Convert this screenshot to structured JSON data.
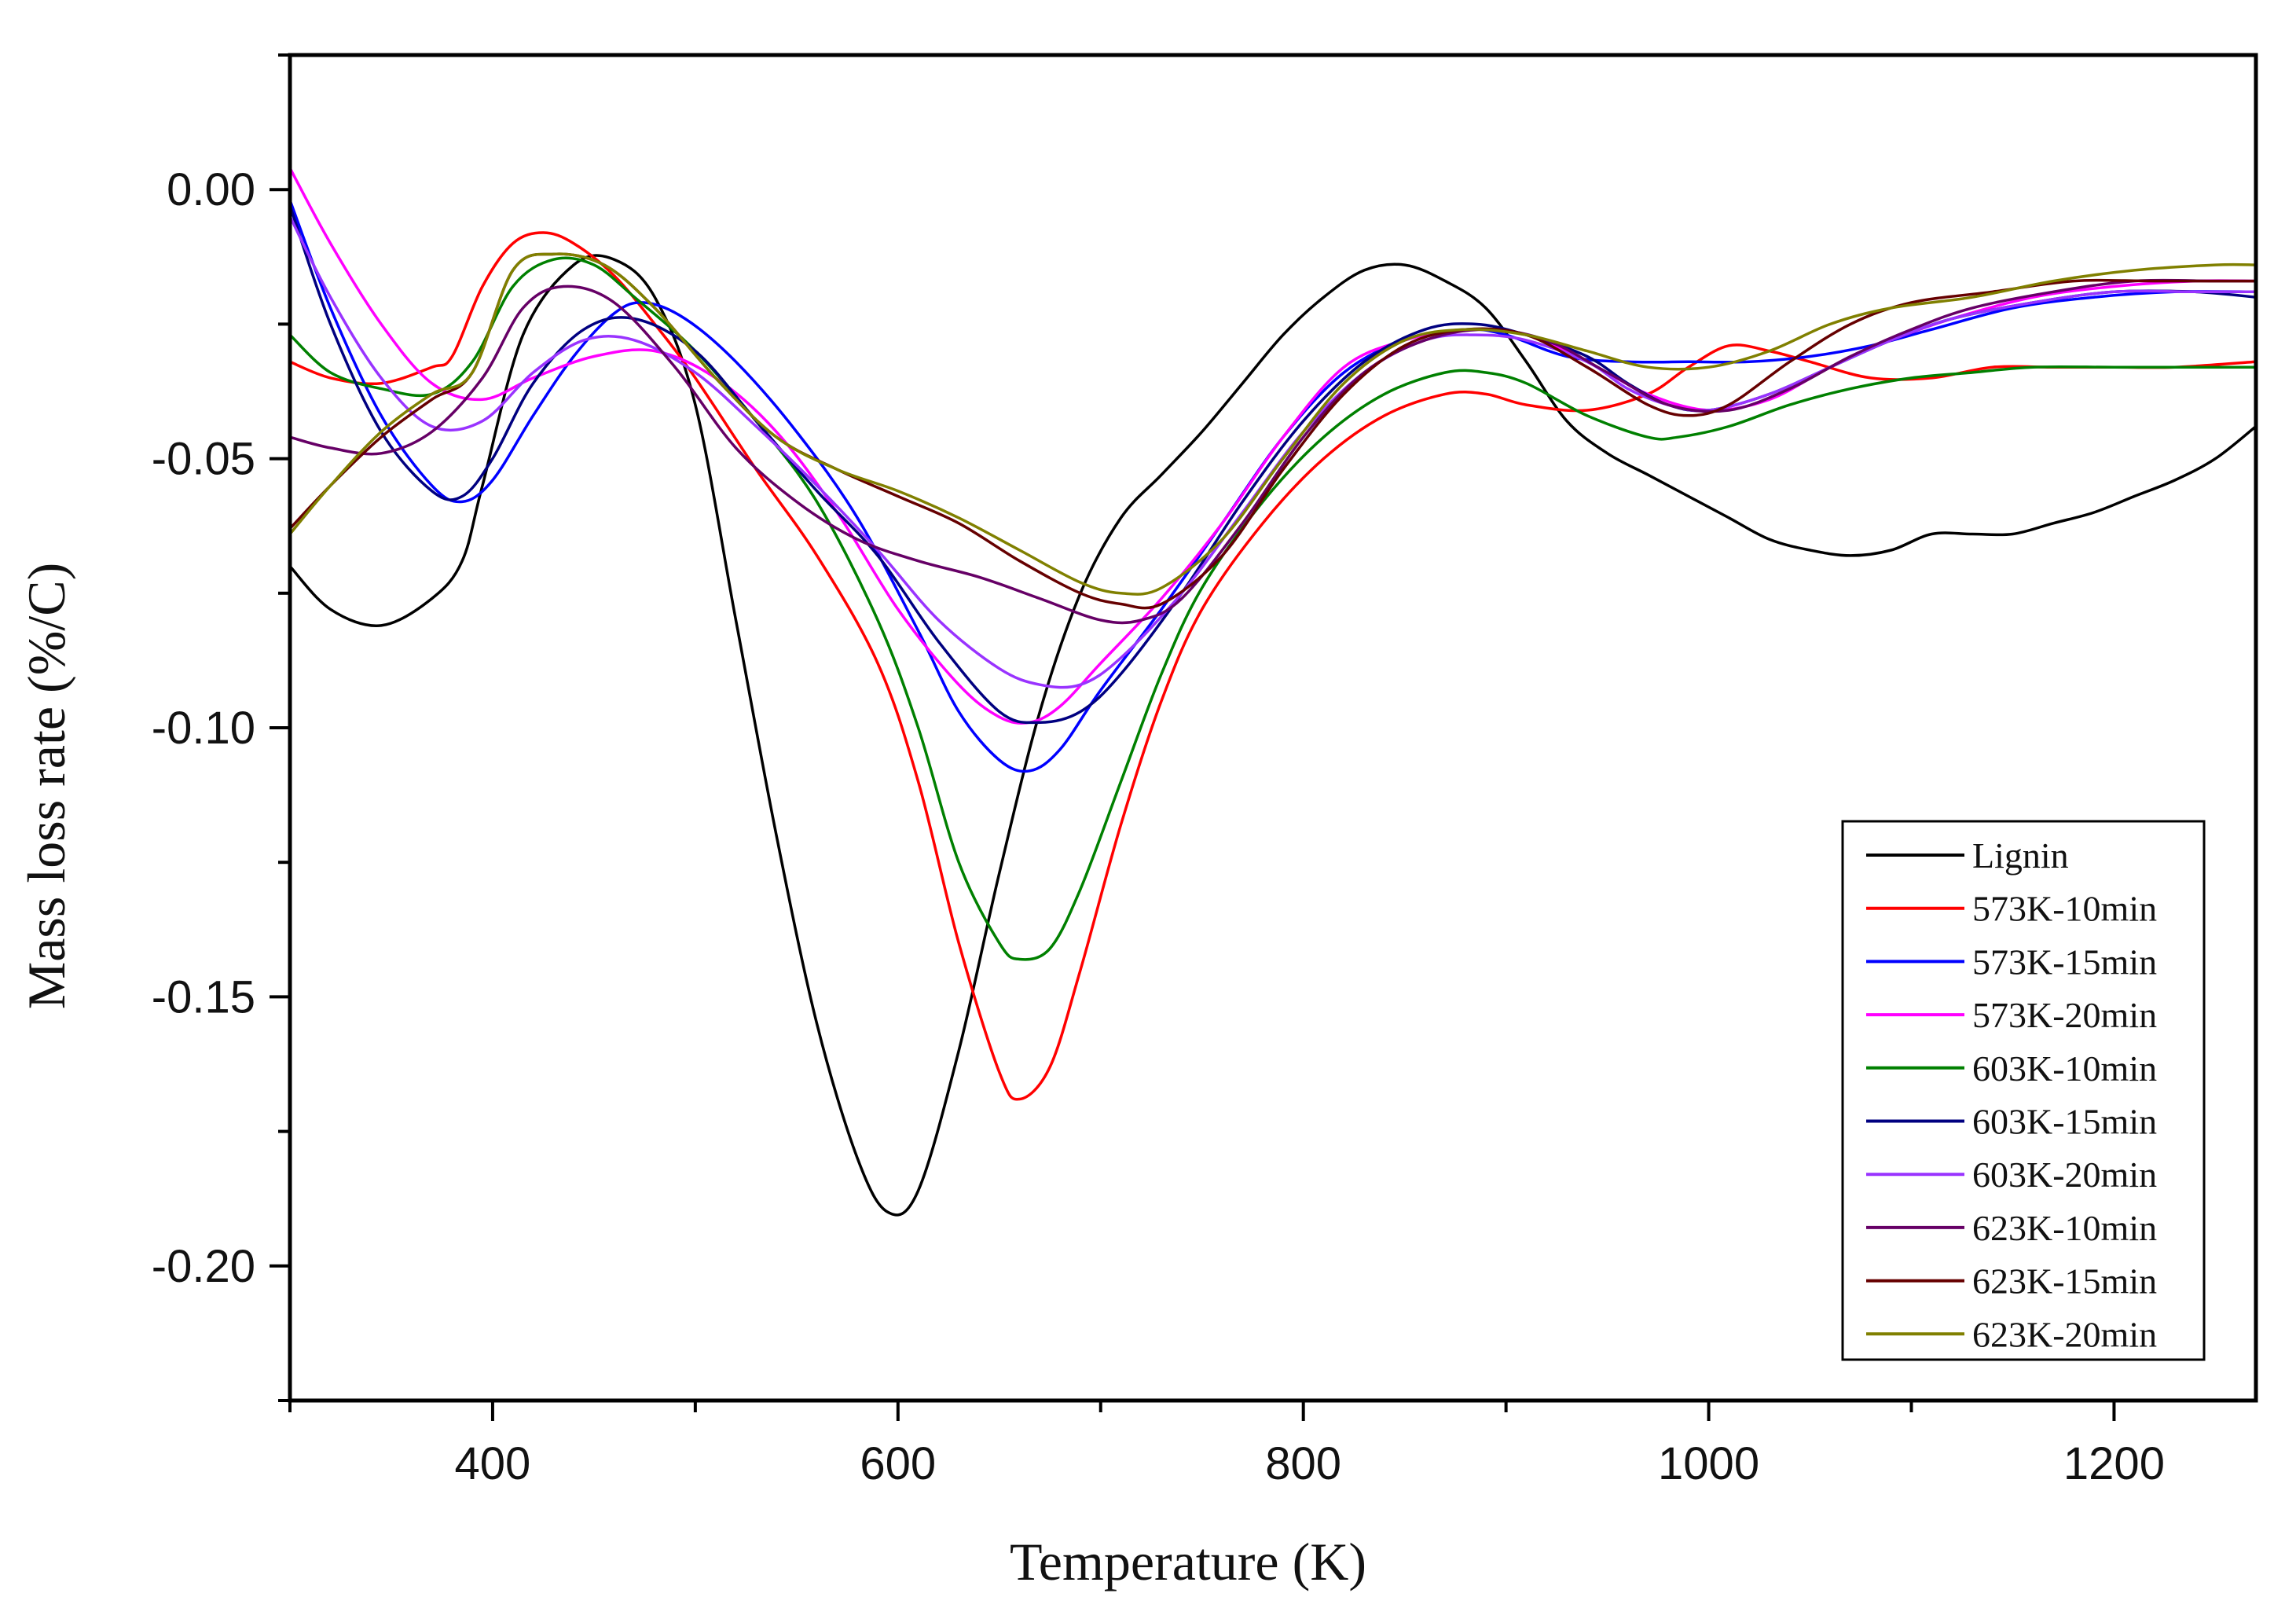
{
  "chart_data": {
    "type": "line",
    "title": "",
    "xlabel": "Temperature (K)",
    "ylabel": "Mass loss rate (%/C)",
    "xlim": [
      300,
      1270
    ],
    "ylim": [
      -0.225,
      0.025
    ],
    "xticks": [
      400,
      600,
      800,
      1000,
      1200
    ],
    "xtick_labels": [
      "400",
      "600",
      "800",
      "1000",
      "1200"
    ],
    "xminor": [
      300,
      500,
      700,
      900,
      1100
    ],
    "yticks": [
      0.0,
      -0.05,
      -0.1,
      -0.15,
      -0.2
    ],
    "ytick_labels": [
      "0.00",
      "-0.05",
      "-0.10",
      "-0.15",
      "-0.20"
    ],
    "yminor": [
      0.025,
      -0.025,
      -0.075,
      -0.125,
      -0.175,
      -0.225
    ],
    "grid": false,
    "legend_position": "bottom-right",
    "series": [
      {
        "name": "Lignin",
        "color": "#000000",
        "x": [
          300,
          320,
          345,
          370,
          385,
          395,
          415,
          440,
          460,
          480,
          500,
          520,
          540,
          560,
          580,
          595,
          610,
          630,
          650,
          670,
          690,
          710,
          730,
          750,
          770,
          790,
          810,
          830,
          850,
          870,
          890,
          910,
          930,
          950,
          970,
          990,
          1010,
          1030,
          1050,
          1070,
          1090,
          1110,
          1130,
          1150,
          1170,
          1190,
          1210,
          1230,
          1250,
          1270
        ],
        "y": [
          -0.07,
          -0.078,
          -0.081,
          -0.076,
          -0.069,
          -0.055,
          -0.027,
          -0.014,
          -0.013,
          -0.02,
          -0.04,
          -0.08,
          -0.12,
          -0.155,
          -0.18,
          -0.19,
          -0.186,
          -0.16,
          -0.127,
          -0.097,
          -0.075,
          -0.061,
          -0.053,
          -0.045,
          -0.036,
          -0.027,
          -0.02,
          -0.015,
          -0.014,
          -0.017,
          -0.022,
          -0.032,
          -0.043,
          -0.049,
          -0.053,
          -0.057,
          -0.061,
          -0.065,
          -0.067,
          -0.068,
          -0.067,
          -0.064,
          -0.064,
          -0.064,
          -0.062,
          -0.06,
          -0.057,
          -0.054,
          -0.05,
          -0.044
        ]
      },
      {
        "name": "573K-10min",
        "color": "#ff0000",
        "x": [
          300,
          320,
          345,
          370,
          380,
          395,
          410,
          425,
          440,
          460,
          480,
          500,
          530,
          560,
          590,
          610,
          630,
          650,
          660,
          675,
          690,
          710,
          730,
          750,
          780,
          810,
          840,
          870,
          890,
          910,
          940,
          970,
          990,
          1010,
          1030,
          1050,
          1080,
          1110,
          1140,
          1170,
          1200,
          1230,
          1270
        ],
        "y": [
          -0.032,
          -0.035,
          -0.036,
          -0.033,
          -0.031,
          -0.018,
          -0.01,
          -0.008,
          -0.01,
          -0.016,
          -0.025,
          -0.035,
          -0.052,
          -0.068,
          -0.088,
          -0.11,
          -0.14,
          -0.164,
          -0.169,
          -0.163,
          -0.145,
          -0.118,
          -0.095,
          -0.078,
          -0.062,
          -0.05,
          -0.042,
          -0.038,
          -0.038,
          -0.04,
          -0.041,
          -0.038,
          -0.033,
          -0.029,
          -0.03,
          -0.032,
          -0.035,
          -0.035,
          -0.033,
          -0.033,
          -0.033,
          -0.033,
          -0.032
        ]
      },
      {
        "name": "573K-15min",
        "color": "#0000ff",
        "x": [
          300,
          320,
          345,
          370,
          385,
          400,
          420,
          440,
          460,
          475,
          495,
          520,
          550,
          580,
          610,
          630,
          650,
          665,
          680,
          700,
          730,
          760,
          790,
          820,
          850,
          880,
          900,
          930,
          960,
          990,
          1020,
          1050,
          1080,
          1110,
          1150,
          1190,
          1230,
          1270
        ],
        "y": [
          -0.002,
          -0.022,
          -0.042,
          -0.055,
          -0.058,
          -0.054,
          -0.042,
          -0.031,
          -0.023,
          -0.021,
          -0.024,
          -0.032,
          -0.045,
          -0.061,
          -0.082,
          -0.097,
          -0.106,
          -0.108,
          -0.104,
          -0.093,
          -0.078,
          -0.062,
          -0.046,
          -0.034,
          -0.028,
          -0.026,
          -0.027,
          -0.031,
          -0.032,
          -0.032,
          -0.032,
          -0.031,
          -0.029,
          -0.026,
          -0.022,
          -0.02,
          -0.019,
          -0.019
        ]
      },
      {
        "name": "573K-20min",
        "color": "#ff00ff",
        "x": [
          300,
          320,
          345,
          370,
          395,
          420,
          450,
          480,
          510,
          540,
          570,
          600,
          630,
          650,
          665,
          680,
          700,
          730,
          760,
          790,
          820,
          850,
          880,
          910,
          940,
          970,
          1000,
          1030,
          1060,
          1090,
          1120,
          1160,
          1200,
          1240,
          1270
        ],
        "y": [
          0.004,
          -0.01,
          -0.025,
          -0.036,
          -0.039,
          -0.035,
          -0.031,
          -0.03,
          -0.035,
          -0.045,
          -0.06,
          -0.078,
          -0.092,
          -0.098,
          -0.099,
          -0.096,
          -0.088,
          -0.076,
          -0.062,
          -0.046,
          -0.033,
          -0.028,
          -0.026,
          -0.027,
          -0.032,
          -0.038,
          -0.041,
          -0.039,
          -0.033,
          -0.028,
          -0.024,
          -0.02,
          -0.018,
          -0.017,
          -0.017
        ]
      },
      {
        "name": "603K-10min",
        "color": "#008000",
        "x": [
          300,
          320,
          345,
          370,
          390,
          410,
          430,
          450,
          470,
          500,
          530,
          560,
          590,
          610,
          630,
          650,
          660,
          675,
          690,
          710,
          730,
          750,
          780,
          810,
          840,
          870,
          890,
          910,
          940,
          970,
          985,
          1010,
          1040,
          1070,
          1100,
          1130,
          1160,
          1200,
          1240,
          1270
        ],
        "y": [
          -0.027,
          -0.034,
          -0.037,
          -0.038,
          -0.032,
          -0.018,
          -0.013,
          -0.014,
          -0.02,
          -0.03,
          -0.043,
          -0.058,
          -0.08,
          -0.1,
          -0.125,
          -0.14,
          -0.143,
          -0.141,
          -0.13,
          -0.11,
          -0.09,
          -0.074,
          -0.058,
          -0.046,
          -0.038,
          -0.034,
          -0.034,
          -0.036,
          -0.042,
          -0.046,
          -0.046,
          -0.044,
          -0.04,
          -0.037,
          -0.035,
          -0.034,
          -0.033,
          -0.033,
          -0.033,
          -0.033
        ]
      },
      {
        "name": "603K-15min",
        "color": "#000080",
        "x": [
          300,
          320,
          345,
          370,
          385,
          400,
          420,
          445,
          470,
          500,
          530,
          560,
          590,
          620,
          650,
          670,
          690,
          710,
          740,
          770,
          800,
          830,
          860,
          885,
          910,
          940,
          960,
          980,
          1000,
          1030,
          1060,
          1090,
          1120,
          1160,
          1200,
          1240,
          1270
        ],
        "y": [
          -0.003,
          -0.025,
          -0.045,
          -0.056,
          -0.057,
          -0.05,
          -0.036,
          -0.026,
          -0.024,
          -0.03,
          -0.043,
          -0.056,
          -0.068,
          -0.084,
          -0.097,
          -0.099,
          -0.097,
          -0.09,
          -0.075,
          -0.058,
          -0.043,
          -0.032,
          -0.026,
          -0.025,
          -0.027,
          -0.031,
          -0.036,
          -0.04,
          -0.041,
          -0.038,
          -0.033,
          -0.028,
          -0.024,
          -0.021,
          -0.019,
          -0.019,
          -0.02
        ]
      },
      {
        "name": "603K-20min",
        "color": "#9933ff",
        "x": [
          300,
          320,
          345,
          370,
          395,
          420,
          445,
          470,
          500,
          530,
          560,
          590,
          620,
          650,
          670,
          690,
          710,
          740,
          770,
          800,
          830,
          860,
          885,
          910,
          940,
          960,
          980,
          1000,
          1030,
          1060,
          1090,
          1120,
          1160,
          1200,
          1240,
          1270
        ],
        "y": [
          -0.005,
          -0.02,
          -0.035,
          -0.044,
          -0.043,
          -0.034,
          -0.028,
          -0.028,
          -0.034,
          -0.044,
          -0.055,
          -0.067,
          -0.08,
          -0.089,
          -0.092,
          -0.092,
          -0.087,
          -0.075,
          -0.06,
          -0.045,
          -0.034,
          -0.028,
          -0.027,
          -0.028,
          -0.032,
          -0.037,
          -0.04,
          -0.041,
          -0.038,
          -0.033,
          -0.028,
          -0.024,
          -0.021,
          -0.019,
          -0.019,
          -0.019
        ]
      },
      {
        "name": "623K-10min",
        "color": "#660066",
        "x": [
          300,
          320,
          345,
          370,
          395,
          415,
          435,
          460,
          490,
          520,
          550,
          580,
          610,
          640,
          670,
          700,
          720,
          740,
          770,
          800,
          830,
          860,
          890,
          920,
          950,
          980,
          1010,
          1040,
          1070,
          1100,
          1130,
          1170,
          1210,
          1250,
          1270
        ],
        "y": [
          -0.046,
          -0.048,
          -0.049,
          -0.045,
          -0.035,
          -0.022,
          -0.018,
          -0.021,
          -0.033,
          -0.048,
          -0.058,
          -0.065,
          -0.069,
          -0.072,
          -0.076,
          -0.08,
          -0.08,
          -0.076,
          -0.062,
          -0.046,
          -0.034,
          -0.028,
          -0.026,
          -0.028,
          -0.034,
          -0.04,
          -0.041,
          -0.037,
          -0.031,
          -0.026,
          -0.022,
          -0.019,
          -0.017,
          -0.017,
          -0.017
        ]
      },
      {
        "name": "623K-15min",
        "color": "#660000",
        "x": [
          300,
          320,
          345,
          370,
          390,
          410,
          430,
          455,
          480,
          510,
          540,
          570,
          600,
          630,
          660,
          690,
          710,
          730,
          760,
          790,
          820,
          850,
          880,
          910,
          940,
          970,
          990,
          1010,
          1040,
          1070,
          1100,
          1140,
          1180,
          1220,
          1270
        ],
        "y": [
          -0.063,
          -0.055,
          -0.046,
          -0.039,
          -0.034,
          -0.015,
          -0.012,
          -0.014,
          -0.022,
          -0.035,
          -0.046,
          -0.052,
          -0.057,
          -0.062,
          -0.069,
          -0.075,
          -0.077,
          -0.077,
          -0.068,
          -0.052,
          -0.038,
          -0.029,
          -0.026,
          -0.027,
          -0.033,
          -0.04,
          -0.042,
          -0.04,
          -0.032,
          -0.025,
          -0.021,
          -0.019,
          -0.017,
          -0.017,
          -0.017
        ]
      },
      {
        "name": "623K-20min",
        "color": "#808000",
        "x": [
          300,
          320,
          345,
          370,
          390,
          410,
          430,
          455,
          480,
          510,
          540,
          570,
          600,
          630,
          660,
          690,
          710,
          730,
          760,
          790,
          820,
          850,
          880,
          910,
          940,
          970,
          1000,
          1030,
          1060,
          1090,
          1130,
          1170,
          1210,
          1250,
          1270
        ],
        "y": [
          -0.064,
          -0.055,
          -0.045,
          -0.038,
          -0.034,
          -0.015,
          -0.012,
          -0.014,
          -0.022,
          -0.035,
          -0.046,
          -0.052,
          -0.056,
          -0.061,
          -0.067,
          -0.073,
          -0.075,
          -0.074,
          -0.065,
          -0.05,
          -0.036,
          -0.028,
          -0.026,
          -0.027,
          -0.03,
          -0.033,
          -0.033,
          -0.03,
          -0.025,
          -0.022,
          -0.02,
          -0.017,
          -0.015,
          -0.014,
          -0.014
        ]
      }
    ]
  }
}
